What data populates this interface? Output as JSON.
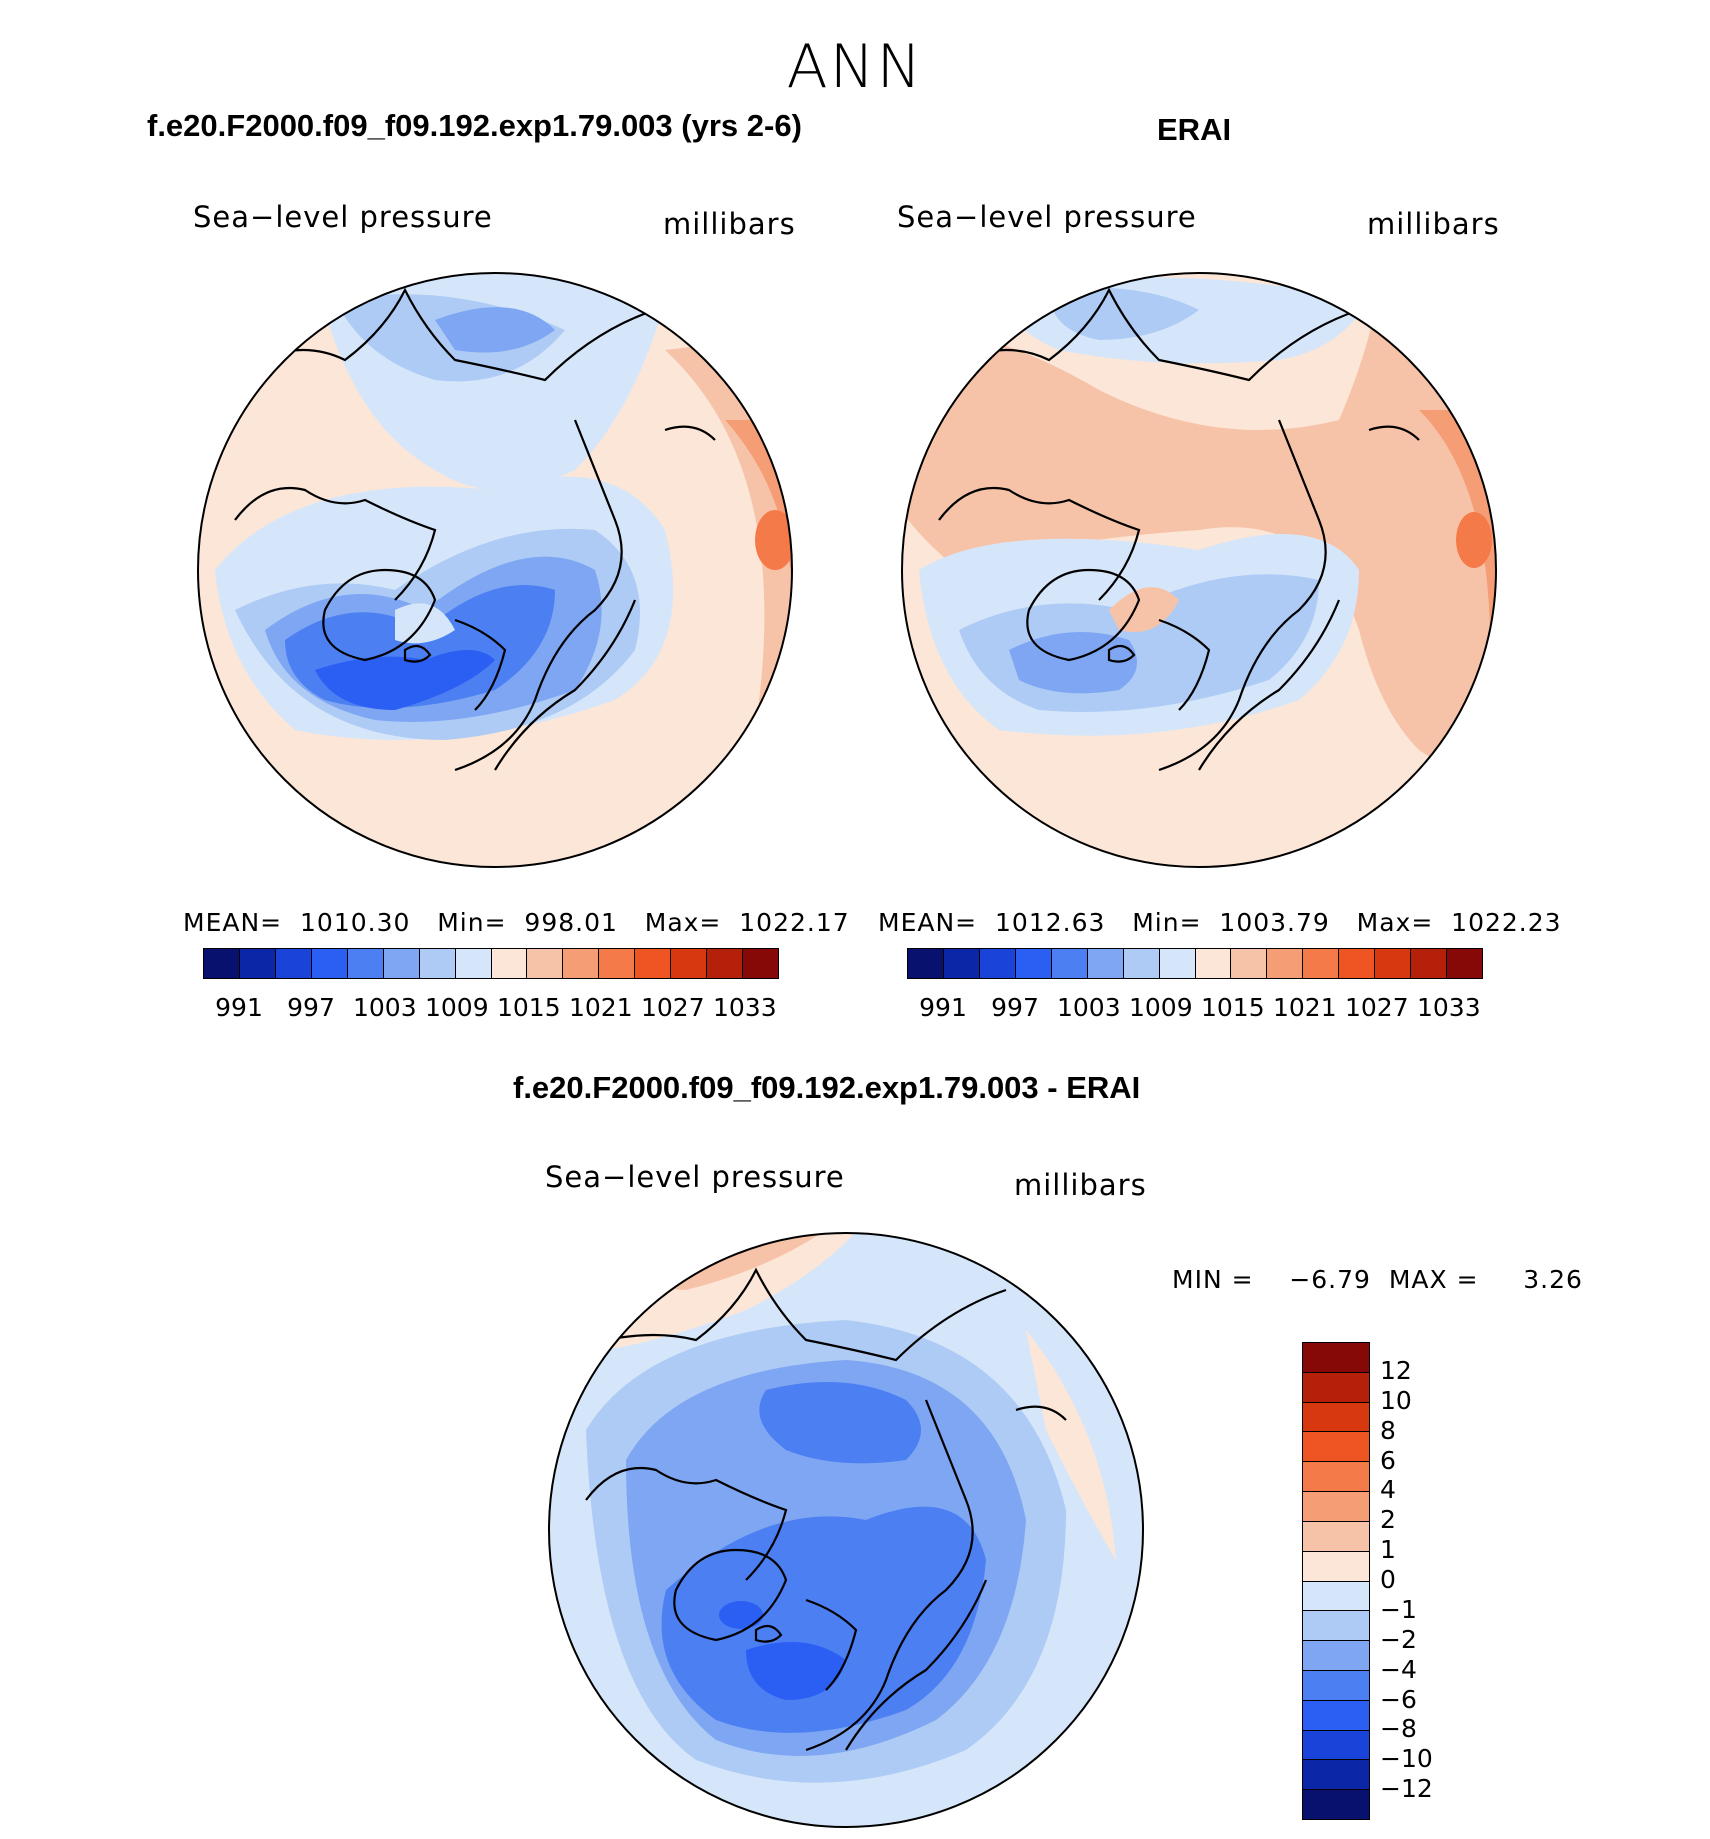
{
  "page_title": "ANN",
  "panels": [
    {
      "title": "f.e20.F2000.f09_f09.192.exp1.79.003 (yrs 2-6)",
      "variable": "Sea−level pressure",
      "units": "millibars",
      "stats": "MEAN=  1010.30   Min=  998.01   Max=  1022.17",
      "mean": 1010.3,
      "min": 998.01,
      "max": 1022.17
    },
    {
      "title": "ERAI",
      "variable": "Sea−level pressure",
      "units": "millibars",
      "stats": "MEAN=  1012.63   Min=  1003.79   Max=  1022.23",
      "mean": 1012.63,
      "min": 1003.79,
      "max": 1022.23
    }
  ],
  "diff_panel": {
    "title": "f.e20.F2000.f09_f09.192.exp1.79.003 - ERAI",
    "variable": "Sea−level pressure",
    "units": "millibars",
    "stats": "MIN =    −6.79  MAX =     3.26",
    "min": -6.79,
    "max": 3.26
  },
  "abs_colorbar": {
    "ticks": [
      "991",
      "997",
      "1003",
      "1009",
      "1015",
      "1021",
      "1027",
      "1033"
    ],
    "colors": [
      "#08126e",
      "#0b26a6",
      "#1a44d9",
      "#2b5ef2",
      "#4b7ff2",
      "#7ea6f2",
      "#aecbf5",
      "#d6e6fa",
      "#fbe6d8",
      "#f7c3a8",
      "#f59e76",
      "#f47a4a",
      "#ef5522",
      "#d8380f",
      "#b5200a",
      "#860807"
    ]
  },
  "diff_colorbar": {
    "ticks": [
      "12",
      "10",
      "8",
      "6",
      "4",
      "2",
      "1",
      "0",
      "−1",
      "−2",
      "−4",
      "−6",
      "−8",
      "−10",
      "−12"
    ],
    "colors": [
      "#860807",
      "#b5200a",
      "#d8380f",
      "#ef5522",
      "#f47a4a",
      "#f59e76",
      "#f7c3a8",
      "#fbe6d8",
      "#d6e6fa",
      "#aecbf5",
      "#7ea6f2",
      "#4b7ff2",
      "#2b5ef2",
      "#1a44d9",
      "#0b26a6",
      "#08126e"
    ]
  }
}
